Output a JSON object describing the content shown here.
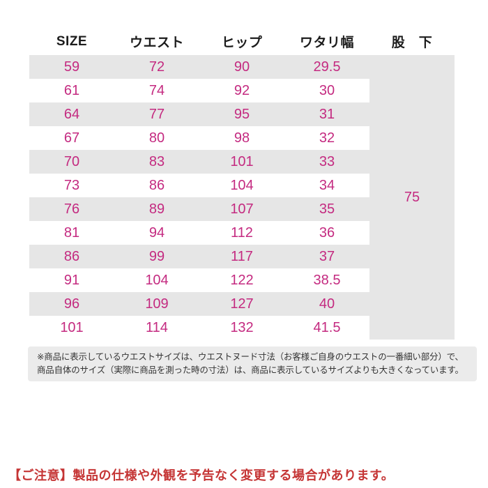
{
  "colors": {
    "value_magenta": "#c42a80",
    "row_gray": "#e6e6e6",
    "note_bg": "#ebebeb",
    "caution_red": "#c53535",
    "header_ink": "#1c1c1c",
    "note_ink": "#333333"
  },
  "table": {
    "headers": [
      "SIZE",
      "ウエスト",
      "ヒップ",
      "ワタリ幅",
      "股　下"
    ],
    "rows": [
      [
        "59",
        "72",
        "90",
        "29.5"
      ],
      [
        "61",
        "74",
        "92",
        "30"
      ],
      [
        "64",
        "77",
        "95",
        "31"
      ],
      [
        "67",
        "80",
        "98",
        "32"
      ],
      [
        "70",
        "83",
        "101",
        "33"
      ],
      [
        "73",
        "86",
        "104",
        "34"
      ],
      [
        "76",
        "89",
        "107",
        "35"
      ],
      [
        "81",
        "94",
        "112",
        "36"
      ],
      [
        "86",
        "99",
        "117",
        "37"
      ],
      [
        "91",
        "104",
        "122",
        "38.5"
      ],
      [
        "96",
        "109",
        "127",
        "40"
      ],
      [
        "101",
        "114",
        "132",
        "41.5"
      ]
    ],
    "inseam_value": "75"
  },
  "note": {
    "lines": [
      "※商品に表示しているウエストサイズは、ウエストヌード寸法（お客様ご自身のウエストの一番細い部分）で、",
      "商品自体のサイズ（実際に商品を測った時の寸法）は、商品に表示しているサイズよりも大きくなっています。"
    ]
  },
  "notice": {
    "text": "【ご注意】製品の仕様や外観を予告なく変更する場合があります。"
  },
  "chart_data": {
    "type": "table",
    "title": "サイズ表（サイズ別 寸法一覧）",
    "columns": [
      "SIZE",
      "ウエスト",
      "ヒップ",
      "ワタリ幅",
      "股下"
    ],
    "rows": [
      [
        59,
        72,
        90,
        29.5
      ],
      [
        61,
        74,
        92,
        30
      ],
      [
        64,
        77,
        95,
        31
      ],
      [
        67,
        80,
        98,
        32
      ],
      [
        70,
        83,
        101,
        33
      ],
      [
        73,
        86,
        104,
        34
      ],
      [
        76,
        89,
        107,
        35
      ],
      [
        81,
        94,
        112,
        36
      ],
      [
        86,
        99,
        117,
        37
      ],
      [
        91,
        104,
        122,
        38.5
      ],
      [
        96,
        109,
        127,
        40
      ],
      [
        101,
        114,
        132,
        41.5
      ]
    ],
    "merged_column": {
      "name": "股下",
      "value": 75,
      "applies_to": "all_rows"
    },
    "annotations": [
      "※商品に表示しているウエストサイズは、ウエストヌード寸法（お客様ご自身のウエストの一番細い部分）で、商品自体のサイズ（実際に商品を測った時の寸法）は、商品に表示しているサイズよりも大きくなっています。",
      "【ご注意】製品の仕様や外観を予告なく変更する場合があります。"
    ],
    "layout_hints": {
      "zebra_striping": true,
      "stripe_rows": "odd",
      "value_color": "#c42a80",
      "inseam_column_background": "#e6e6e6"
    }
  }
}
